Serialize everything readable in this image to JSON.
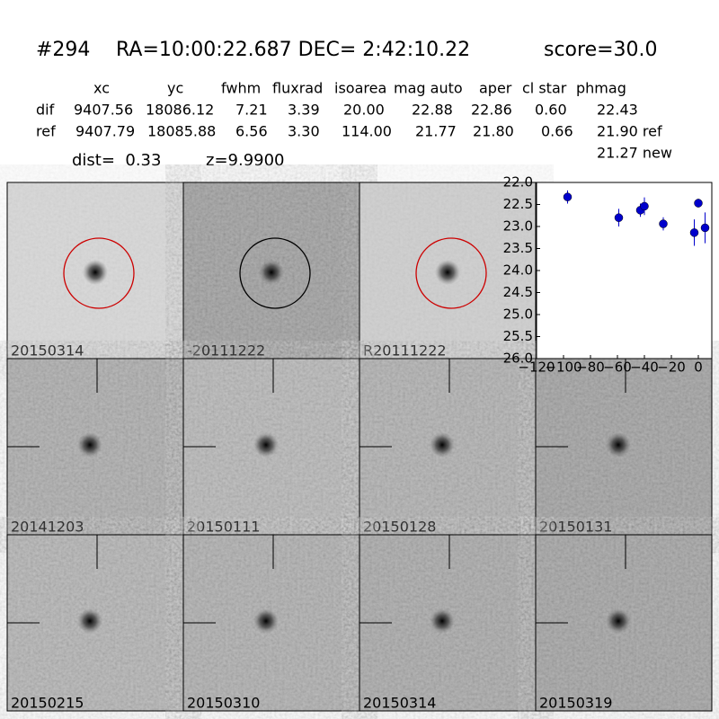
{
  "header": {
    "id": "#294",
    "coords": "RA=10:00:22.687 DEC= 2:42:10.22",
    "score": "score=30.0"
  },
  "table": {
    "columns": [
      "xc",
      "yc",
      "fwhm",
      "fluxrad",
      "isoarea",
      "mag auto",
      "aper",
      "cl star",
      "phmag"
    ],
    "rows": [
      [
        "dif",
        "9407.56",
        "18086.12",
        "7.21",
        "3.39",
        "20.00",
        "22.88",
        "22.86",
        "0.60",
        "22.43"
      ],
      [
        "ref",
        "9407.79",
        "18085.88",
        "6.56",
        "3.30",
        "114.00",
        "21.77",
        "21.80",
        "0.66",
        "21.90 ref"
      ]
    ],
    "extra": "21.27 new"
  },
  "dist": "dist=  0.33",
  "redshift": "z=9.9900",
  "panels": [
    {
      "label": "20150314",
      "circle": "#cc0000"
    },
    {
      "label": "-20111222",
      "circle": "#000000"
    },
    {
      "label": "R20111222",
      "circle": "#cc0000"
    },
    {
      "label": "20141203"
    },
    {
      "label": "20150111"
    },
    {
      "label": "20150128"
    },
    {
      "label": "20150131"
    },
    {
      "label": "20150215"
    },
    {
      "label": "20150310"
    },
    {
      "label": "20150314",
      "label_color": "#ff0000"
    },
    {
      "label": "20150319"
    }
  ],
  "chart_data": {
    "type": "scatter",
    "color": "#0000cc",
    "x": [
      -97,
      -59,
      -43,
      -40,
      -26,
      -3,
      0,
      5
    ],
    "values": [
      22.33,
      22.8,
      22.63,
      22.54,
      22.94,
      23.14,
      22.47,
      23.03
    ],
    "errors": [
      0.15,
      0.2,
      0.15,
      0.2,
      0.15,
      0.3,
      0.1,
      0.35
    ],
    "xlim": [
      -120,
      10
    ],
    "ylim": [
      26,
      22
    ],
    "xticks": [
      {
        "value": -120,
        "label": "−120"
      },
      {
        "value": -100,
        "label": "−100"
      },
      {
        "value": -80,
        "label": "−80"
      },
      {
        "value": -60,
        "label": "−60"
      },
      {
        "value": -40,
        "label": "−40"
      },
      {
        "value": -20,
        "label": "−20"
      },
      0
    ],
    "yticks": [
      {
        "value": 22,
        "label": "22.0"
      },
      {
        "value": 22.5,
        "label": "22.5"
      },
      {
        "value": 23,
        "label": "23.0"
      },
      {
        "value": 23.5,
        "label": "23.5"
      },
      {
        "value": 24,
        "label": "24.0"
      },
      {
        "value": 24.5,
        "label": "24.5"
      },
      {
        "value": 25,
        "label": "25.0"
      },
      {
        "value": 25.5,
        "label": "25.5"
      },
      {
        "value": 26,
        "label": "26.0"
      }
    ]
  }
}
